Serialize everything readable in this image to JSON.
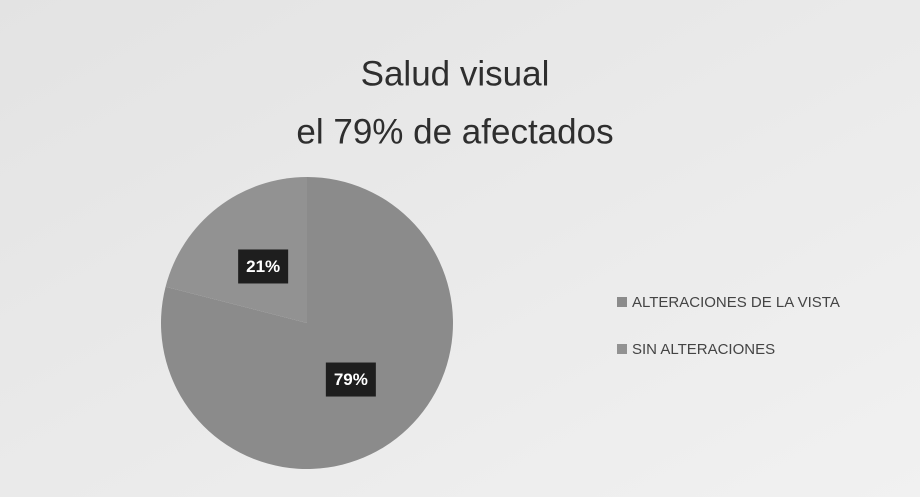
{
  "chart_data": {
    "type": "pie",
    "title": [
      "Salud visual",
      "el 79% de afectados"
    ],
    "categories": [
      "ALTERACIONES DE LA VISTA",
      "SIN ALTERACIONES"
    ],
    "values": [
      79,
      21
    ],
    "value_labels": [
      "79%",
      "21%"
    ],
    "colors": [
      "#8b8b8b",
      "#929292"
    ],
    "legend": "right"
  }
}
